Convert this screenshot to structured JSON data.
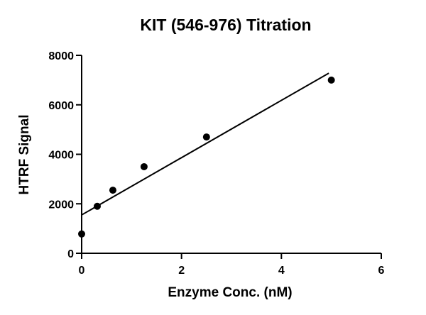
{
  "chart_data": {
    "type": "scatter",
    "title": "KIT (546-976) Titration",
    "xlabel": "Enzyme Conc. (nM)",
    "ylabel": "HTRF Signal",
    "xlim": [
      0,
      6
    ],
    "ylim": [
      0,
      8000
    ],
    "x_ticks": [
      0,
      2,
      4,
      6
    ],
    "y_ticks": [
      0,
      2000,
      4000,
      6000,
      8000
    ],
    "x_tick_labels": [
      "0",
      "2",
      "4",
      "6"
    ],
    "y_tick_labels": [
      "0",
      "2000",
      "4000",
      "6000",
      "8000"
    ],
    "grid": false,
    "legend": "none",
    "series": [
      {
        "x": [
          0,
          0.3125,
          0.625,
          1.25,
          2.5,
          5
        ],
        "y": [
          780,
          1900,
          2550,
          3500,
          4700,
          7000
        ]
      }
    ],
    "fit_line": {
      "x": [
        0,
        4.95
      ],
      "y": [
        1550,
        7280
      ]
    },
    "colors": {
      "marks": "#000000"
    }
  }
}
